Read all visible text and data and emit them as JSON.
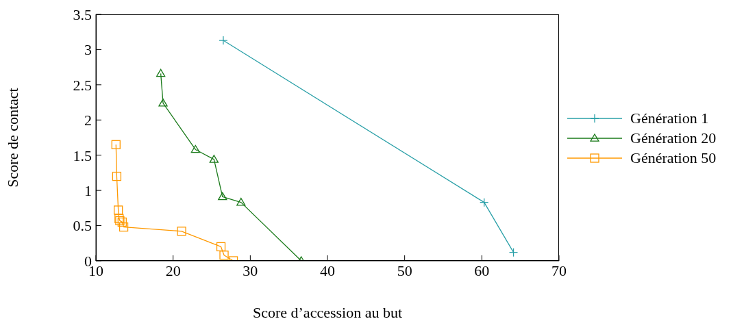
{
  "chart_data": {
    "type": "line",
    "xlabel": "Score d’accession au but",
    "ylabel": "Score de contact",
    "xlim": [
      10,
      70
    ],
    "xticks": [
      10,
      20,
      30,
      40,
      50,
      60,
      70
    ],
    "ylim": [
      0,
      3.5
    ],
    "yticks": [
      0,
      0.5,
      1,
      1.5,
      2,
      2.5,
      3,
      3.5
    ],
    "grid": false,
    "legend": "right",
    "series": [
      {
        "name": "Génération 1",
        "color": "#2aa0a8",
        "marker": "cross",
        "x": [
          26.5,
          60.3,
          64.1
        ],
        "values": [
          3.13,
          0.83,
          0.12
        ]
      },
      {
        "name": "Génération 20",
        "color": "#1a7a1a",
        "marker": "triangle",
        "x": [
          18.4,
          18.7,
          22.9,
          25.3,
          26.4,
          28.8,
          36.6
        ],
        "values": [
          2.66,
          2.24,
          1.58,
          1.44,
          0.91,
          0.83,
          0
        ]
      },
      {
        "name": "Génération 50",
        "color": "#ff9900",
        "marker": "square",
        "x": [
          12.6,
          12.7,
          12.9,
          13.0,
          13.1,
          13.4,
          13.6,
          21.1,
          26.2,
          26.6,
          27.8
        ],
        "values": [
          1.65,
          1.2,
          0.72,
          0.6,
          0.57,
          0.55,
          0.48,
          0.42,
          0.2,
          0.08,
          0
        ]
      }
    ]
  }
}
